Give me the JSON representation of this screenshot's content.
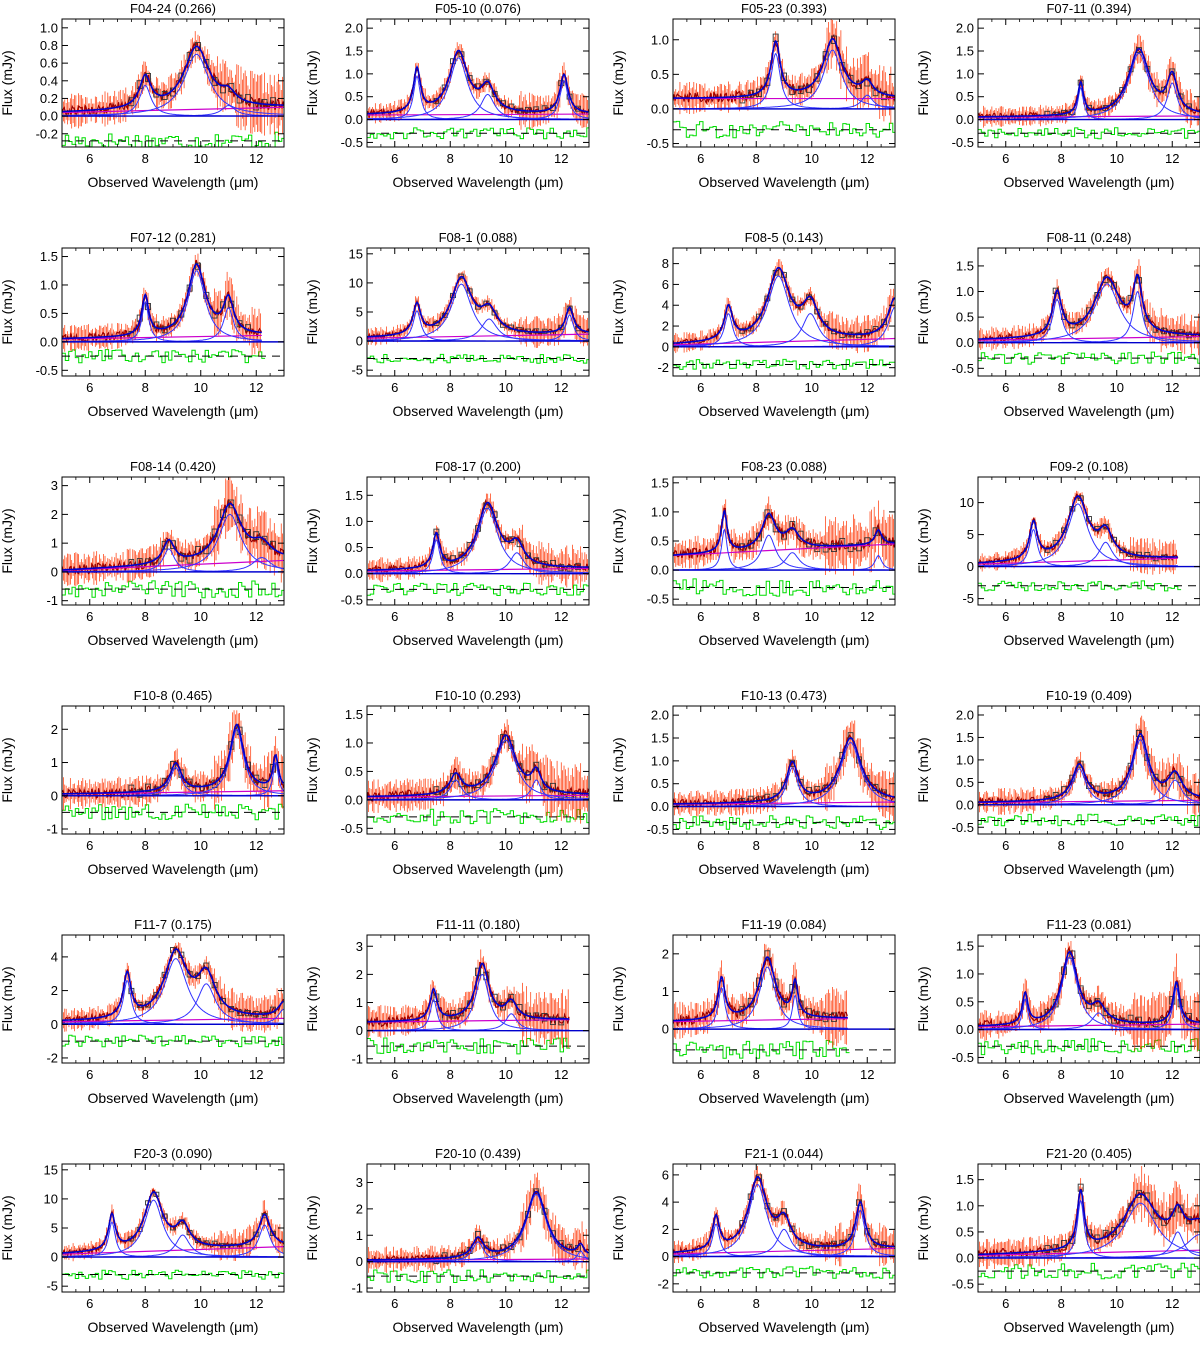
{
  "figure": {
    "xlabel": "Observed Wavelength (μm)",
    "ylabel": "Flux (mJy)",
    "xlim": [
      5,
      13
    ],
    "xticks": [
      6,
      8,
      10,
      12
    ]
  },
  "colors": {
    "data_errorbars": "#ff3300",
    "data_spectrum": "#990000",
    "binned_data": "#333333",
    "model_total": "#0000cc",
    "model_components": "#3333ff",
    "continuum": "#cc00cc",
    "residuals": "#00dd00",
    "zero_line": "#000000"
  },
  "chart_data": [
    {
      "type": "line",
      "title": "F04-24 (0.266)",
      "ylim": [
        -0.35,
        1.1
      ],
      "yticks": [
        -0.2,
        0.0,
        0.2,
        0.4,
        0.6,
        0.8,
        1.0
      ],
      "yfmt": 1,
      "peaks": [
        [
          8.0,
          0.35,
          0.25
        ],
        [
          9.85,
          0.7,
          0.55
        ],
        [
          11.0,
          0.12,
          0.3
        ]
      ],
      "continuum": [
        0.04,
        0.1
      ],
      "residual_offset": -0.28,
      "noise": 0.1,
      "xmax_data": 13
    },
    {
      "type": "line",
      "title": "F05-10 (0.076)",
      "ylim": [
        -0.6,
        2.2
      ],
      "yticks": [
        -0.5,
        0.0,
        0.5,
        1.0,
        1.5,
        2.0
      ],
      "yfmt": 1,
      "peaks": [
        [
          6.8,
          0.95,
          0.15
        ],
        [
          8.3,
          1.35,
          0.4
        ],
        [
          9.35,
          0.55,
          0.3
        ],
        [
          12.1,
          0.85,
          0.18
        ]
      ],
      "continuum": [
        0.1,
        0.12
      ],
      "residual_offset": -0.3,
      "noise": 0.12,
      "xmax_data": 13
    },
    {
      "type": "line",
      "title": "F05-23 (0.393)",
      "ylim": [
        -0.55,
        1.3
      ],
      "yticks": [
        -0.5,
        0.0,
        0.5,
        1.0
      ],
      "yfmt": 1,
      "peaks": [
        [
          8.7,
          0.8,
          0.2
        ],
        [
          10.75,
          0.85,
          0.4
        ],
        [
          12.0,
          0.2,
          0.25
        ]
      ],
      "continuum": [
        0.15,
        0.15
      ],
      "residual_offset": -0.3,
      "noise": 0.12,
      "xmax_data": 13
    },
    {
      "type": "line",
      "title": "F07-11 (0.394)",
      "ylim": [
        -0.6,
        2.2
      ],
      "yticks": [
        -0.5,
        0.0,
        0.5,
        1.0,
        1.5,
        2.0
      ],
      "yfmt": 1,
      "peaks": [
        [
          8.7,
          0.7,
          0.12
        ],
        [
          10.8,
          1.45,
          0.45
        ],
        [
          12.0,
          0.8,
          0.22
        ]
      ],
      "continuum": [
        0.05,
        0.08
      ],
      "residual_offset": -0.3,
      "noise": 0.12,
      "xmax_data": 13
    },
    {
      "type": "line",
      "title": "F07-12 (0.281)",
      "ylim": [
        -0.6,
        1.65
      ],
      "yticks": [
        -0.5,
        0.0,
        0.5,
        1.0,
        1.5
      ],
      "yfmt": 1,
      "peaks": [
        [
          8.0,
          0.7,
          0.15
        ],
        [
          9.85,
          1.25,
          0.38
        ],
        [
          11.0,
          0.6,
          0.22
        ]
      ],
      "continuum": [
        0.05,
        0.12
      ],
      "residual_offset": -0.25,
      "noise": 0.12,
      "xmax_data": 12.2
    },
    {
      "type": "line",
      "title": "F08-1 (0.088)",
      "ylim": [
        -6,
        16
      ],
      "yticks": [
        -5,
        0,
        5,
        10,
        15
      ],
      "yfmt": 0,
      "peaks": [
        [
          6.8,
          5.2,
          0.17
        ],
        [
          8.4,
          9.8,
          0.45
        ],
        [
          9.4,
          3.8,
          0.35
        ],
        [
          12.3,
          4.5,
          0.17
        ]
      ],
      "continuum": [
        0.5,
        1.2
      ],
      "residual_offset": -3,
      "noise": 0.8,
      "xmax_data": 13
    },
    {
      "type": "line",
      "title": "F08-5 (0.143)",
      "ylim": [
        -2.8,
        9.5
      ],
      "yticks": [
        -2,
        0,
        2,
        4,
        6,
        8
      ],
      "yfmt": 0,
      "peaks": [
        [
          7.0,
          3.2,
          0.18
        ],
        [
          8.8,
          6.8,
          0.48
        ],
        [
          9.95,
          3.2,
          0.35
        ],
        [
          13.0,
          3.8,
          0.3
        ]
      ],
      "continuum": [
        0.2,
        0.8
      ],
      "residual_offset": -1.7,
      "noise": 0.5,
      "xmax_data": 13
    },
    {
      "type": "line",
      "title": "F08-11 (0.248)",
      "ylim": [
        -0.65,
        1.85
      ],
      "yticks": [
        -0.5,
        0.0,
        0.5,
        1.0,
        1.5
      ],
      "yfmt": 1,
      "peaks": [
        [
          7.85,
          0.85,
          0.2
        ],
        [
          9.65,
          1.15,
          0.55
        ],
        [
          10.75,
          1.0,
          0.2
        ]
      ],
      "continuum": [
        0.05,
        0.12
      ],
      "residual_offset": -0.3,
      "noise": 0.12,
      "xmax_data": 13
    },
    {
      "type": "line",
      "title": "F08-14 (0.420)",
      "ylim": [
        -1.15,
        3.3
      ],
      "yticks": [
        -1,
        0,
        1,
        2,
        3
      ],
      "yfmt": 0,
      "peaks": [
        [
          8.85,
          0.8,
          0.25
        ],
        [
          11.05,
          2.0,
          0.5
        ],
        [
          12.2,
          0.5,
          0.4
        ]
      ],
      "continuum": [
        0.05,
        0.4
      ],
      "residual_offset": -0.6,
      "noise": 0.3,
      "xmax_data": 13
    },
    {
      "type": "line",
      "title": "F08-17 (0.200)",
      "ylim": [
        -0.6,
        1.85
      ],
      "yticks": [
        -0.5,
        0.0,
        0.5,
        1.0,
        1.5
      ],
      "yfmt": 1,
      "peaks": [
        [
          7.5,
          0.65,
          0.15
        ],
        [
          9.35,
          1.25,
          0.45
        ],
        [
          10.4,
          0.4,
          0.3
        ]
      ],
      "continuum": [
        0.05,
        0.1
      ],
      "residual_offset": -0.3,
      "noise": 0.12,
      "xmax_data": 13
    },
    {
      "type": "line",
      "title": "F08-23 (0.088)",
      "ylim": [
        -0.6,
        1.6
      ],
      "yticks": [
        -0.5,
        0.0,
        0.5,
        1.0,
        1.5
      ],
      "yfmt": 1,
      "peaks": [
        [
          6.85,
          0.7,
          0.12
        ],
        [
          8.45,
          0.6,
          0.3
        ],
        [
          9.3,
          0.3,
          0.3
        ],
        [
          12.4,
          0.25,
          0.15
        ]
      ],
      "continuum": [
        0.25,
        0.45
      ],
      "residual_offset": -0.3,
      "noise": 0.15,
      "xmax_data": 13
    },
    {
      "type": "line",
      "title": "F09-2 (0.108)",
      "ylim": [
        -6,
        14
      ],
      "yticks": [
        -5,
        0,
        5,
        10
      ],
      "yfmt": 0,
      "peaks": [
        [
          7.0,
          5.8,
          0.17
        ],
        [
          8.6,
          9.8,
          0.45
        ],
        [
          9.6,
          3.8,
          0.3
        ]
      ],
      "continuum": [
        0.4,
        1.4
      ],
      "residual_offset": -3,
      "noise": 0.8,
      "xmax_data": 12.2
    },
    {
      "type": "line",
      "title": "F10-8 (0.465)",
      "ylim": [
        -1.15,
        2.7
      ],
      "yticks": [
        -1,
        0,
        1,
        2
      ],
      "yfmt": 0,
      "peaks": [
        [
          9.1,
          0.85,
          0.25
        ],
        [
          11.3,
          2.0,
          0.3
        ],
        [
          12.7,
          1.0,
          0.12
        ]
      ],
      "continuum": [
        0.05,
        0.15
      ],
      "residual_offset": -0.5,
      "noise": 0.25,
      "xmax_data": 13
    },
    {
      "type": "line",
      "title": "F10-10 (0.293)",
      "ylim": [
        -0.6,
        1.65
      ],
      "yticks": [
        -0.5,
        0.0,
        0.5,
        1.0,
        1.5
      ],
      "yfmt": 1,
      "peaks": [
        [
          8.2,
          0.35,
          0.25
        ],
        [
          10.0,
          1.05,
          0.45
        ],
        [
          11.1,
          0.35,
          0.2
        ]
      ],
      "continuum": [
        0.05,
        0.08
      ],
      "residual_offset": -0.3,
      "noise": 0.15,
      "xmax_data": 13
    },
    {
      "type": "line",
      "title": "F10-13 (0.473)",
      "ylim": [
        -0.6,
        2.2
      ],
      "yticks": [
        -0.5,
        0.0,
        0.5,
        1.0,
        1.5,
        2.0
      ],
      "yfmt": 1,
      "peaks": [
        [
          9.3,
          0.85,
          0.25
        ],
        [
          11.4,
          1.4,
          0.45
        ]
      ],
      "continuum": [
        0.05,
        0.1
      ],
      "residual_offset": -0.35,
      "noise": 0.15,
      "xmax_data": 13
    },
    {
      "type": "line",
      "title": "F10-19 (0.409)",
      "ylim": [
        -0.65,
        2.2
      ],
      "yticks": [
        -0.5,
        0.0,
        0.5,
        1.0,
        1.5,
        2.0
      ],
      "yfmt": 1,
      "peaks": [
        [
          8.65,
          0.8,
          0.3
        ],
        [
          10.85,
          1.45,
          0.35
        ],
        [
          12.1,
          0.55,
          0.3
        ]
      ],
      "continuum": [
        0.05,
        0.1
      ],
      "residual_offset": -0.35,
      "noise": 0.15,
      "xmax_data": 13
    },
    {
      "type": "line",
      "title": "F11-7 (0.175)",
      "ylim": [
        -2.3,
        5.3
      ],
      "yticks": [
        -2,
        0,
        2,
        4
      ],
      "yfmt": 0,
      "peaks": [
        [
          7.35,
          2.6,
          0.17
        ],
        [
          9.1,
          3.9,
          0.5
        ],
        [
          10.2,
          2.4,
          0.4
        ],
        [
          13.0,
          0.9,
          0.25
        ]
      ],
      "continuum": [
        0.15,
        0.35
      ],
      "residual_offset": -1,
      "noise": 0.35,
      "xmax_data": 13
    },
    {
      "type": "line",
      "title": "F11-11 (0.180)",
      "ylim": [
        -1.15,
        3.4
      ],
      "yticks": [
        -1,
        0,
        1,
        2,
        3
      ],
      "yfmt": 0,
      "peaks": [
        [
          7.4,
          1.1,
          0.15
        ],
        [
          9.15,
          2.0,
          0.3
        ],
        [
          10.2,
          0.6,
          0.25
        ]
      ],
      "continuum": [
        0.3,
        0.4
      ],
      "residual_offset": -0.55,
      "noise": 0.3,
      "xmax_data": 12.3
    },
    {
      "type": "line",
      "title": "F11-19 (0.084)",
      "ylim": [
        -0.9,
        2.5
      ],
      "yticks": [
        0,
        1,
        2
      ],
      "yfmt": 0,
      "peaks": [
        [
          6.75,
          1.1,
          0.15
        ],
        [
          8.4,
          1.65,
          0.35
        ],
        [
          9.4,
          0.9,
          0.12
        ]
      ],
      "continuum": [
        0.2,
        0.3
      ],
      "residual_offset": -0.55,
      "noise": 0.25,
      "xmax_data": 11.3
    },
    {
      "type": "line",
      "title": "F11-23 (0.081)",
      "ylim": [
        -0.6,
        1.7
      ],
      "yticks": [
        -0.5,
        0.0,
        0.5,
        1.0,
        1.5
      ],
      "yfmt": 1,
      "peaks": [
        [
          6.7,
          0.55,
          0.12
        ],
        [
          8.3,
          1.3,
          0.35
        ],
        [
          9.35,
          0.3,
          0.3
        ],
        [
          12.15,
          0.75,
          0.15
        ]
      ],
      "continuum": [
        0.05,
        0.1
      ],
      "residual_offset": -0.3,
      "noise": 0.15,
      "xmax_data": 13
    },
    {
      "type": "line",
      "title": "F20-3 (0.090)",
      "ylim": [
        -6,
        16
      ],
      "yticks": [
        -5,
        0,
        5,
        10,
        15
      ],
      "yfmt": 0,
      "peaks": [
        [
          6.8,
          6.0,
          0.15
        ],
        [
          8.3,
          9.8,
          0.4
        ],
        [
          9.35,
          3.8,
          0.3
        ],
        [
          12.3,
          5.5,
          0.25
        ]
      ],
      "continuum": [
        0.5,
        1.8
      ],
      "residual_offset": -3,
      "noise": 0.8,
      "xmax_data": 13
    },
    {
      "type": "line",
      "title": "F20-10 (0.439)",
      "ylim": [
        -1.15,
        3.7
      ],
      "yticks": [
        -1,
        0,
        1,
        2,
        3
      ],
      "yfmt": 0,
      "peaks": [
        [
          9.0,
          0.75,
          0.25
        ],
        [
          11.1,
          2.55,
          0.45
        ],
        [
          12.7,
          0.4,
          0.15
        ]
      ],
      "continuum": [
        0.05,
        0.1
      ],
      "residual_offset": -0.55,
      "noise": 0.25,
      "xmax_data": 13
    },
    {
      "type": "line",
      "title": "F21-1 (0.044)",
      "ylim": [
        -2.6,
        6.8
      ],
      "yticks": [
        -2,
        0,
        2,
        4,
        6
      ],
      "yfmt": 0,
      "peaks": [
        [
          6.55,
          2.4,
          0.15
        ],
        [
          8.05,
          5.3,
          0.4
        ],
        [
          9.0,
          2.0,
          0.3
        ],
        [
          11.75,
          3.4,
          0.2
        ]
      ],
      "continuum": [
        0.2,
        0.6
      ],
      "residual_offset": -1.2,
      "noise": 0.45,
      "xmax_data": 13
    },
    {
      "type": "line",
      "title": "F21-20 (0.405)",
      "ylim": [
        -0.65,
        1.8
      ],
      "yticks": [
        -0.5,
        0.0,
        0.5,
        1.0,
        1.5
      ],
      "yfmt": 1,
      "peaks": [
        [
          8.7,
          1.1,
          0.15
        ],
        [
          10.85,
          1.05,
          0.7
        ],
        [
          12.2,
          0.5,
          0.25
        ],
        [
          13.0,
          0.45,
          0.6
        ]
      ],
      "continuum": [
        0.05,
        0.15
      ],
      "residual_offset": -0.25,
      "noise": 0.15,
      "xmax_data": 13
    }
  ]
}
